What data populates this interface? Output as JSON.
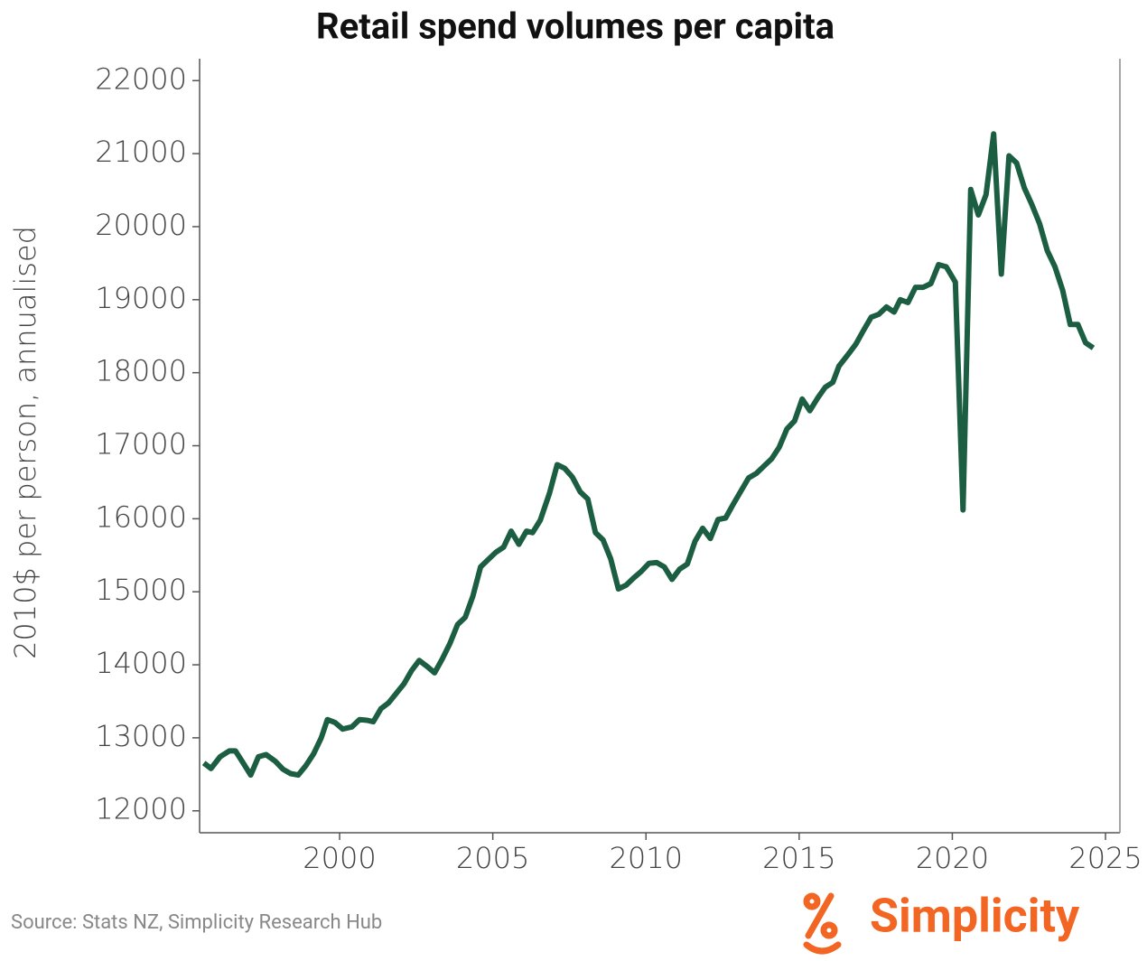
{
  "chart_data": {
    "type": "line",
    "title": "Retail spend volumes per capita",
    "y_label": "2010$ per person, annualised",
    "source": "Source: Stats NZ, Simplicity Research Hub",
    "logo": "Simplicity",
    "xlim": [
      1995.43,
      2025.47
    ],
    "xticks": [
      2000,
      2005,
      2010,
      2015,
      2020,
      2025
    ],
    "ylim": [
      11700,
      22300
    ],
    "yticks": [
      12000,
      13000,
      14000,
      15000,
      16000,
      17000,
      18000,
      19000,
      20000,
      21000,
      22000
    ],
    "grid": false,
    "series": [
      {
        "name": "Retail spend volumes per capita",
        "color": "#1b5e42",
        "x": [
          1995.57,
          1995.8,
          1996.1,
          1996.4,
          1996.6,
          1996.8,
          1997.1,
          1997.35,
          1997.6,
          1997.9,
          1998.15,
          1998.4,
          1998.65,
          1998.9,
          1999.15,
          1999.4,
          1999.6,
          1999.85,
          2000.1,
          2000.4,
          2000.65,
          2000.9,
          2001.1,
          2001.35,
          2001.6,
          2001.85,
          2002.1,
          2002.35,
          2002.6,
          2002.85,
          2003.1,
          2003.35,
          2003.6,
          2003.85,
          2004.1,
          2004.35,
          2004.6,
          2004.85,
          2005.1,
          2005.35,
          2005.6,
          2005.85,
          2006.1,
          2006.3,
          2006.55,
          2006.85,
          2007.1,
          2007.35,
          2007.6,
          2007.85,
          2008.1,
          2008.35,
          2008.6,
          2008.85,
          2009.1,
          2009.35,
          2009.6,
          2009.85,
          2010.1,
          2010.35,
          2010.6,
          2010.85,
          2011.1,
          2011.35,
          2011.6,
          2011.85,
          2012.1,
          2012.35,
          2012.6,
          2012.85,
          2013.1,
          2013.35,
          2013.6,
          2013.85,
          2014.1,
          2014.35,
          2014.6,
          2014.85,
          2015.1,
          2015.35,
          2015.6,
          2015.85,
          2016.1,
          2016.3,
          2016.6,
          2016.85,
          2017.1,
          2017.35,
          2017.6,
          2017.85,
          2018.1,
          2018.3,
          2018.55,
          2018.8,
          2019.05,
          2019.3,
          2019.55,
          2019.8,
          2020.1,
          2020.35,
          2020.6,
          2020.85,
          2021.1,
          2021.35,
          2021.6,
          2021.85,
          2022.1,
          2022.35,
          2022.6,
          2022.85,
          2023.1,
          2023.35,
          2023.6,
          2023.85,
          2024.1,
          2024.35,
          2024.6
        ],
        "values": [
          12655,
          12580,
          12740,
          12820,
          12820,
          12690,
          12490,
          12740,
          12770,
          12680,
          12570,
          12510,
          12490,
          12620,
          12780,
          13000,
          13250,
          13210,
          13120,
          13150,
          13250,
          13240,
          13220,
          13400,
          13480,
          13610,
          13740,
          13920,
          14060,
          13980,
          13890,
          14080,
          14290,
          14550,
          14650,
          14940,
          15340,
          15440,
          15540,
          15610,
          15830,
          15650,
          15830,
          15810,
          15980,
          16350,
          16740,
          16690,
          16570,
          16370,
          16270,
          15810,
          15710,
          15450,
          15040,
          15090,
          15190,
          15280,
          15390,
          15400,
          15340,
          15170,
          15310,
          15380,
          15690,
          15870,
          15730,
          15990,
          16010,
          16200,
          16380,
          16560,
          16620,
          16720,
          16820,
          16980,
          17230,
          17340,
          17640,
          17480,
          17650,
          17800,
          17870,
          18090,
          18250,
          18390,
          18580,
          18760,
          18800,
          18900,
          18830,
          19000,
          18960,
          19170,
          19170,
          19220,
          19480,
          19450,
          19240,
          16120,
          20510,
          20160,
          20440,
          21270,
          19350,
          20970,
          20870,
          20530,
          20300,
          20040,
          19670,
          19450,
          19130,
          18660,
          18660,
          18410,
          18340
        ]
      }
    ]
  }
}
